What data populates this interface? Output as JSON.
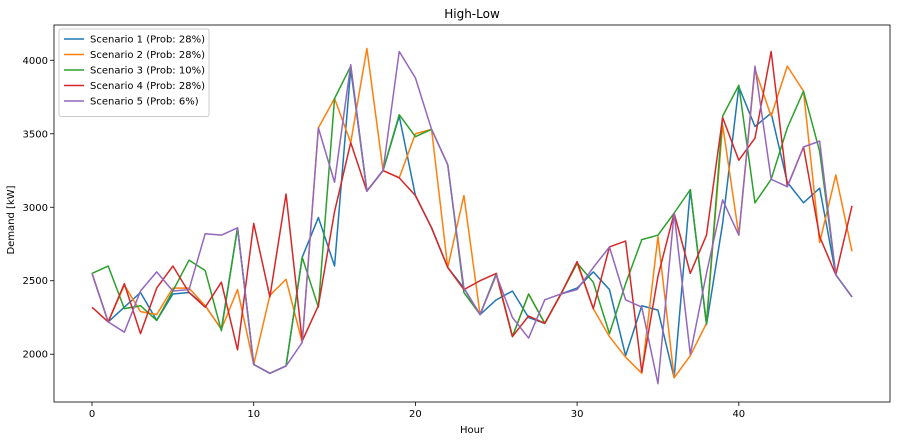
{
  "chart_data": {
    "type": "line",
    "title": "High-Low",
    "xlabel": "Hour",
    "ylabel": "Demand [kW]",
    "xlim": [
      -2.35,
      49.35
    ],
    "ylim": [
      1675,
      4240
    ],
    "xticks": [
      0,
      10,
      20,
      30,
      40
    ],
    "yticks": [
      2000,
      2500,
      3000,
      3500,
      4000
    ],
    "grid": false,
    "legend_position": "upper left",
    "x": [
      0,
      1,
      2,
      3,
      4,
      5,
      6,
      7,
      8,
      9,
      10,
      11,
      12,
      13,
      14,
      15,
      16,
      17,
      18,
      19,
      20,
      21,
      22,
      23,
      24,
      25,
      26,
      27,
      28,
      29,
      30,
      31,
      32,
      33,
      34,
      35,
      36,
      37,
      38,
      39,
      40,
      41,
      42,
      43,
      44,
      45,
      46,
      47
    ],
    "series": [
      {
        "name": "Scenario 1 (Prob: 28%)",
        "color": "#1f77b4",
        "values": [
          2550,
          2220,
          2320,
          2420,
          2230,
          2410,
          2420,
          2330,
          2170,
          2860,
          1930,
          1870,
          1920,
          2660,
          2930,
          2600,
          3940,
          3110,
          3250,
          3620,
          3080,
          2860,
          2590,
          2450,
          2270,
          2370,
          2430,
          2250,
          2210,
          2410,
          2450,
          2560,
          2440,
          1990,
          2330,
          2300,
          1840,
          3120,
          2200,
          2890,
          3820,
          3550,
          3640,
          3170,
          3030,
          3130,
          2540,
          2390
        ]
      },
      {
        "name": "Scenario 2 (Prob: 28%)",
        "color": "#ff7f0e",
        "values": [
          2550,
          2220,
          2470,
          2290,
          2270,
          2450,
          2450,
          2330,
          2170,
          2440,
          1930,
          2400,
          2510,
          2080,
          3540,
          3740,
          3440,
          4080,
          3250,
          3200,
          3500,
          3530,
          2590,
          3080,
          2270,
          2540,
          2120,
          2410,
          2210,
          2410,
          2620,
          2310,
          2120,
          1980,
          1870,
          2800,
          1840,
          1990,
          2210,
          3560,
          2810,
          3940,
          3620,
          3960,
          3790,
          2760,
          3220,
          2700
        ]
      },
      {
        "name": "Scenario 3 (Prob: 10%)",
        "color": "#2ca02c",
        "values": [
          2550,
          2600,
          2310,
          2330,
          2230,
          2430,
          2640,
          2570,
          2160,
          2860,
          1930,
          1870,
          1920,
          2660,
          2320,
          3740,
          3960,
          3110,
          3250,
          3630,
          3480,
          3530,
          3290,
          2420,
          2270,
          2550,
          2120,
          2410,
          2210,
          2410,
          2620,
          2490,
          2140,
          2480,
          2780,
          2810,
          2960,
          3120,
          2210,
          3620,
          3830,
          3030,
          3190,
          3540,
          3790,
          3380,
          2540,
          2390
        ]
      },
      {
        "name": "Scenario 4 (Prob: 28%)",
        "color": "#d62728",
        "values": [
          2320,
          2220,
          2480,
          2140,
          2450,
          2600,
          2420,
          2320,
          2490,
          2030,
          2890,
          2390,
          3090,
          2090,
          2330,
          2970,
          3440,
          3110,
          3250,
          3200,
          3080,
          2860,
          2590,
          2440,
          2500,
          2550,
          2120,
          2260,
          2210,
          2410,
          2630,
          2310,
          2730,
          2770,
          1880,
          2530,
          2960,
          2550,
          2810,
          3610,
          3320,
          3470,
          4060,
          3140,
          3410,
          2800,
          2540,
          3010
        ]
      },
      {
        "name": "Scenario 5 (Prob: 6%)",
        "color": "#9467bd",
        "values": [
          2550,
          2220,
          2150,
          2430,
          2560,
          2430,
          2440,
          2820,
          2810,
          2860,
          1930,
          1870,
          1920,
          2080,
          3540,
          3170,
          3970,
          3110,
          3250,
          4060,
          3880,
          3530,
          3290,
          2450,
          2270,
          2540,
          2250,
          2110,
          2370,
          2410,
          2440,
          2590,
          2730,
          2370,
          2320,
          1800,
          2960,
          2000,
          2550,
          3050,
          2810,
          3960,
          3190,
          3140,
          3410,
          3450,
          2540,
          2390
        ]
      }
    ]
  }
}
